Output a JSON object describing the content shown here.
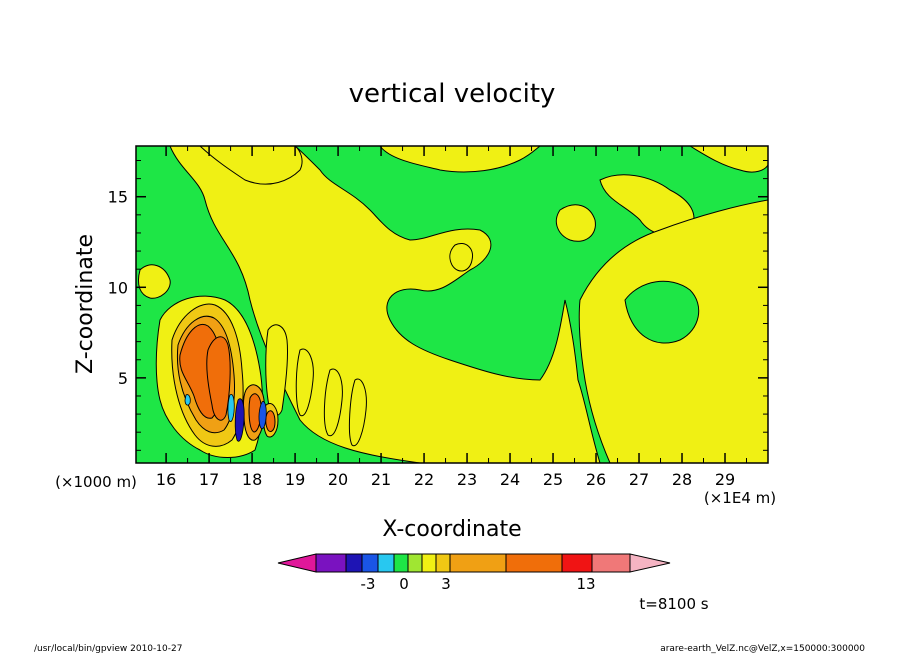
{
  "chart_data": {
    "type": "heatmap",
    "title": "vertical velocity",
    "xlabel": "X-coordinate",
    "ylabel": "Z-coordinate",
    "x_unit_left": "(×1000 m)",
    "x_unit_right": "(×1E4 m)",
    "xlim": [
      15.3,
      30.0
    ],
    "ylim": [
      0.3,
      17.8
    ],
    "x_ticks": [
      "16",
      "17",
      "18",
      "19",
      "20",
      "21",
      "22",
      "23",
      "24",
      "25",
      "26",
      "27",
      "28",
      "29"
    ],
    "y_ticks": [
      "5",
      "10",
      "15"
    ],
    "colorbar": {
      "colors": [
        "#e0179a",
        "#7a12c0",
        "#1e14b4",
        "#1a55e6",
        "#28c8f0",
        "#1ee646",
        "#a0e632",
        "#f0f014",
        "#f0c814",
        "#f0a014",
        "#f06e0a",
        "#f01414",
        "#f07878",
        "#f5b4c3"
      ],
      "labels": [
        "-3",
        "0",
        "3",
        "13"
      ]
    },
    "time_label": "t=8100 s"
  },
  "footer": {
    "left": "/usr/local/bin/gpview   2010-10-27",
    "right": "arare-earth_VelZ.nc@VelZ,x=150000:300000"
  }
}
